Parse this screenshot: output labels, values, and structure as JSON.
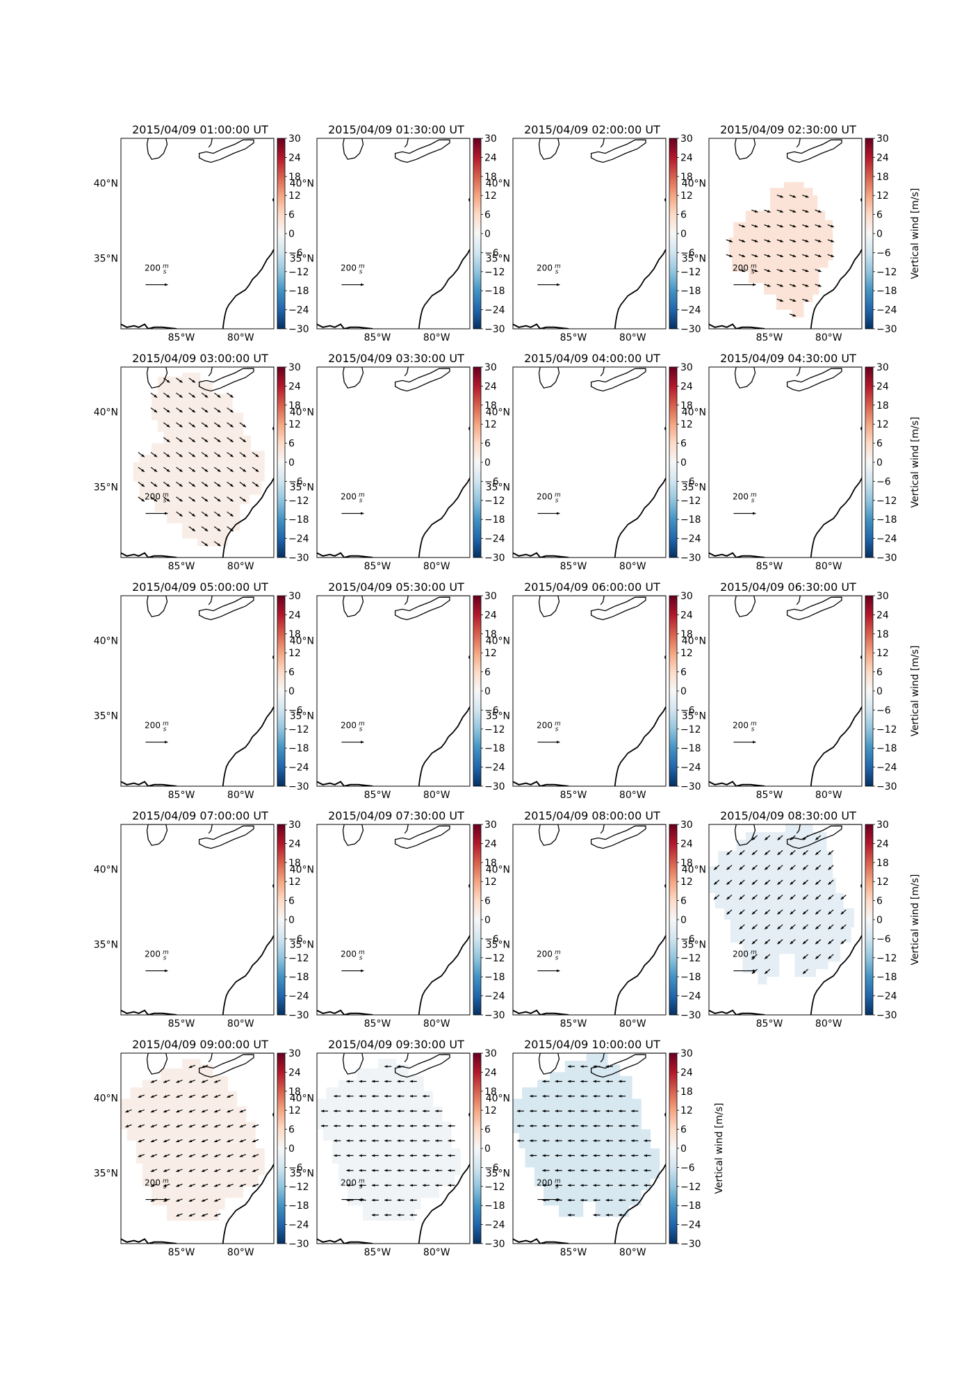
{
  "figure": {
    "panels": [
      {
        "title": "2015/04/09 01:00:00 UT",
        "region": "none",
        "wind": null,
        "arrow": null
      },
      {
        "title": "2015/04/09 01:30:00 UT",
        "region": "none",
        "wind": null,
        "arrow": null
      },
      {
        "title": "2015/04/09 02:00:00 UT",
        "region": "none",
        "wind": null,
        "arrow": null
      },
      {
        "title": "2015/04/09 02:30:00 UT",
        "region": "blob1",
        "wind": 4,
        "arrow": "se-shallow"
      },
      {
        "title": "2015/04/09 03:00:00 UT",
        "region": "blob2",
        "wind": 2,
        "arrow": "se-steep"
      },
      {
        "title": "2015/04/09 03:30:00 UT",
        "region": "none",
        "wind": null,
        "arrow": null
      },
      {
        "title": "2015/04/09 04:00:00 UT",
        "region": "none",
        "wind": null,
        "arrow": null
      },
      {
        "title": "2015/04/09 04:30:00 UT",
        "region": "none",
        "wind": null,
        "arrow": null
      },
      {
        "title": "2015/04/09 05:00:00 UT",
        "region": "none",
        "wind": null,
        "arrow": null
      },
      {
        "title": "2015/04/09 05:30:00 UT",
        "region": "none",
        "wind": null,
        "arrow": null
      },
      {
        "title": "2015/04/09 06:00:00 UT",
        "region": "none",
        "wind": null,
        "arrow": null
      },
      {
        "title": "2015/04/09 06:30:00 UT",
        "region": "none",
        "wind": null,
        "arrow": null
      },
      {
        "title": "2015/04/09 07:00:00 UT",
        "region": "none",
        "wind": null,
        "arrow": null
      },
      {
        "title": "2015/04/09 07:30:00 UT",
        "region": "none",
        "wind": null,
        "arrow": null
      },
      {
        "title": "2015/04/09 08:00:00 UT",
        "region": "none",
        "wind": null,
        "arrow": null
      },
      {
        "title": "2015/04/09 08:30:00 UT",
        "region": "blob3",
        "wind": -3,
        "arrow": "sw"
      },
      {
        "title": "2015/04/09 09:00:00 UT",
        "region": "blob4",
        "wind": 2,
        "arrow": "wsw"
      },
      {
        "title": "2015/04/09 09:30:00 UT",
        "region": "blob4",
        "wind": -1,
        "arrow": "w"
      },
      {
        "title": "2015/04/09 10:00:00 UT",
        "region": "blob5",
        "wind": -5,
        "arrow": "w"
      }
    ],
    "lat_ticks": [
      "40°N",
      "35°N"
    ],
    "lon_ticks": [
      "85°W",
      "80°W"
    ],
    "colorbar": {
      "label": "Vertical wind [m/s]",
      "ticks": [
        "30",
        "24",
        "18",
        "12",
        "6",
        "0",
        "−6",
        "−12",
        "−18",
        "−24",
        "−30"
      ],
      "min": -30,
      "max": 30,
      "colormap": "RdBu_r",
      "colors": [
        "#053061",
        "#2166ac",
        "#4393c3",
        "#92c5de",
        "#d1e5f0",
        "#f7f7f7",
        "#fddbc7",
        "#f4a582",
        "#d6604d",
        "#b2182b",
        "#67001f"
      ]
    },
    "reference_arrow": {
      "value": "200",
      "unit_num": "m",
      "unit_den": "s"
    }
  }
}
